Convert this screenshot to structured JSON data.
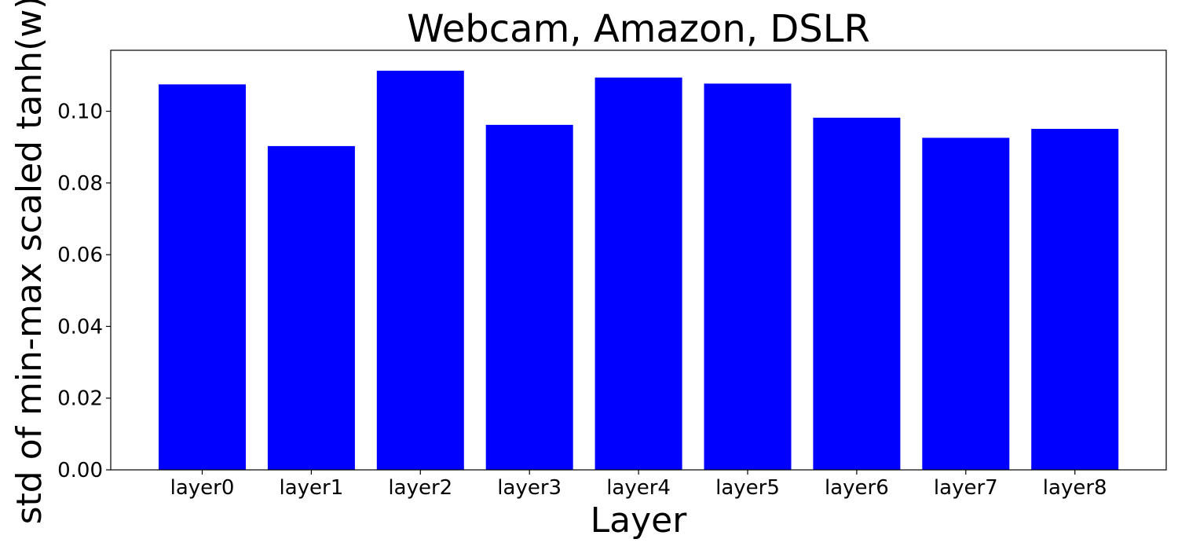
{
  "chart_data": {
    "type": "bar",
    "title": "Webcam, Amazon, DSLR",
    "xlabel": "Layer",
    "ylabel": "std of min-max scaled tanh(w)",
    "categories": [
      "layer0",
      "layer1",
      "layer2",
      "layer3",
      "layer4",
      "layer5",
      "layer6",
      "layer7",
      "layer8"
    ],
    "values": [
      0.1075,
      0.0903,
      0.1113,
      0.0962,
      0.1094,
      0.1077,
      0.0982,
      0.0926,
      0.0951
    ],
    "ylim": [
      0,
      0.117
    ],
    "yticks": [
      0.0,
      0.02,
      0.04,
      0.06,
      0.08,
      0.1
    ],
    "ytick_labels": [
      "0.00",
      "0.02",
      "0.04",
      "0.06",
      "0.08",
      "0.10"
    ],
    "bar_color": "#0000ff",
    "grid": false,
    "legend": "none"
  }
}
